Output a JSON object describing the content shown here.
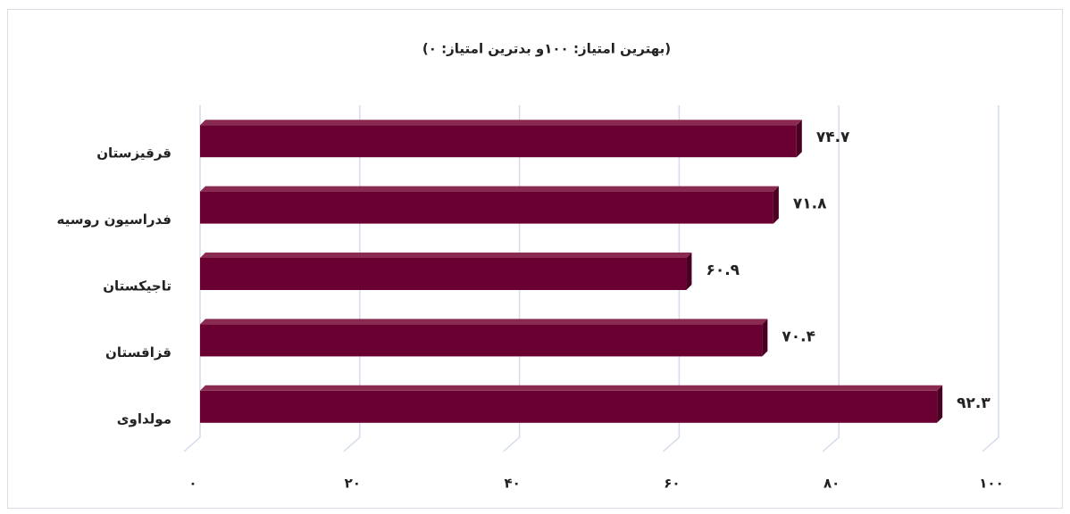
{
  "chart_data": {
    "type": "bar",
    "title": "(بهترین امتیاز: ۱۰۰و بدترین امتیاز: ۰)",
    "categories": [
      "قرقیزستان",
      "فدراسیون روسیه",
      "تاجیکستان",
      "قزاقستان",
      "مولداوی"
    ],
    "values": [
      74.7,
      71.8,
      60.9,
      70.4,
      92.3
    ],
    "value_labels": [
      "۷۴.۷",
      "۷۱.۸",
      "۶۰.۹",
      "۷۰.۴",
      "۹۲.۳"
    ],
    "color": "#6a0032",
    "xlim": [
      0,
      100
    ],
    "xticks": [
      {
        "value": 0,
        "label": "۰"
      },
      {
        "value": 20,
        "label": "۲۰"
      },
      {
        "value": 40,
        "label": "۴۰"
      },
      {
        "value": 60,
        "label": "۶۰"
      },
      {
        "value": 80,
        "label": "۸۰"
      },
      {
        "value": 100,
        "label": "۱۰۰"
      }
    ],
    "grid": true
  }
}
